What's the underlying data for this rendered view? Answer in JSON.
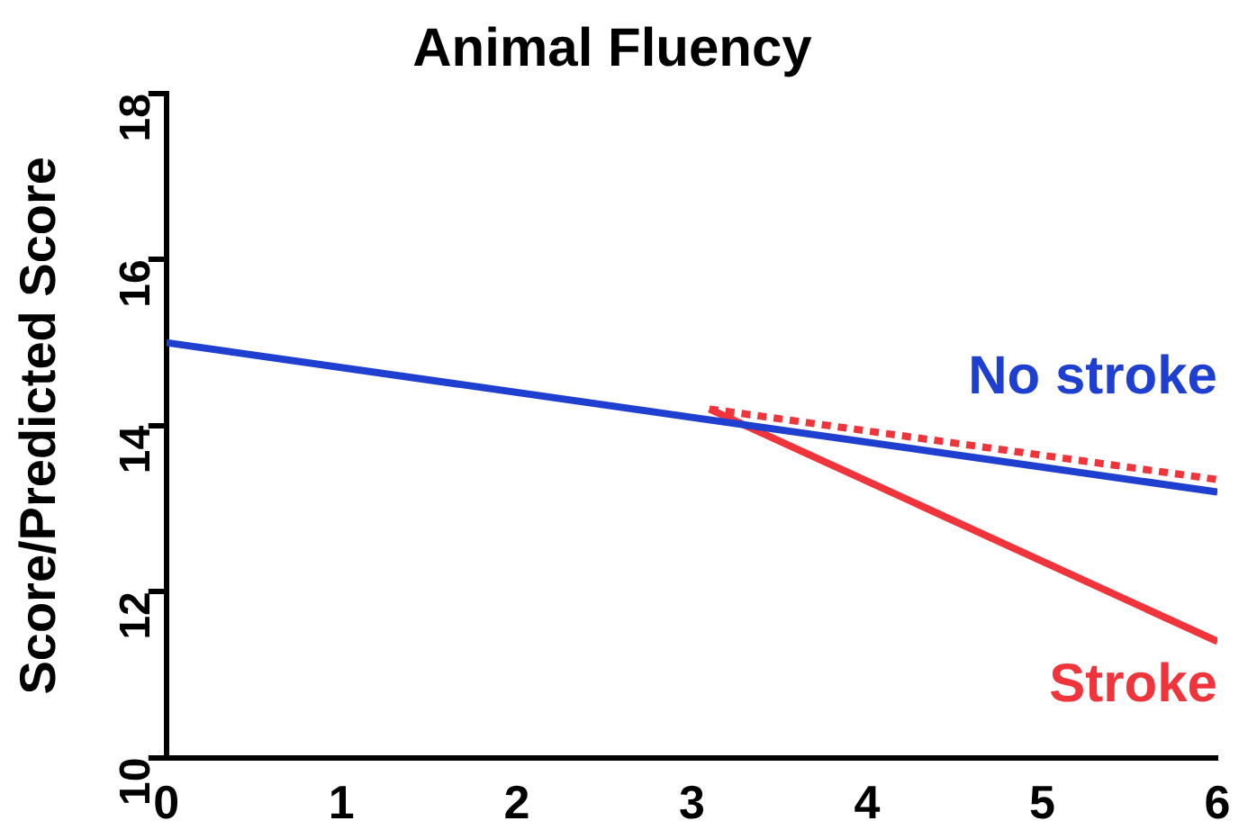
{
  "chart_data": {
    "type": "line",
    "title": "Animal Fluency",
    "ylabel": "Score/Predicted Score",
    "xlim": [
      0,
      6
    ],
    "xticks": [
      0,
      1,
      2,
      3,
      4,
      5,
      6
    ],
    "ylim": [
      10,
      18
    ],
    "yticks": [
      10,
      12,
      14,
      16,
      18
    ],
    "grid": false,
    "legend": false,
    "marker": "none",
    "series": [
      {
        "name": "No stroke",
        "color": "#1f3fd0",
        "x": [
          0,
          6
        ],
        "values": [
          15.0,
          13.2
        ],
        "line_style": "solid"
      },
      {
        "color": "#f0343c",
        "x": [
          3.1,
          6
        ],
        "values": [
          14.2,
          13.35
        ],
        "line_style": "dotted"
      },
      {
        "name": "Stroke",
        "color": "#f0343c",
        "x": [
          3.1,
          6
        ],
        "values": [
          14.2,
          11.4
        ],
        "line_style": "solid"
      }
    ]
  }
}
